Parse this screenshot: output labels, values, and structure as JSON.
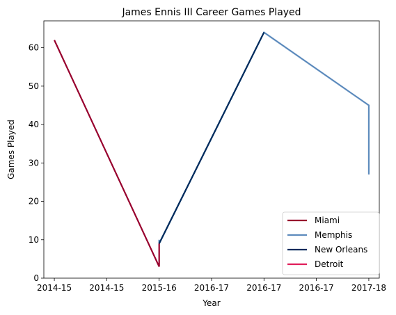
{
  "chart_data": {
    "type": "line",
    "title": "James Ennis III Career Games Played",
    "xlabel": "Year",
    "ylabel": "Games Played",
    "x_tick_labels": [
      "2014-15",
      "2014-15",
      "2015-16",
      "2016-17",
      "2016-17",
      "2016-17",
      "2017-18"
    ],
    "y_ticks": [
      0,
      10,
      20,
      30,
      40,
      50,
      60
    ],
    "xlim": [
      -0.1,
      3.1
    ],
    "ylim": [
      0,
      67
    ],
    "grid": false,
    "legend_position": "lower-right",
    "series": [
      {
        "name": "Miami",
        "color": "#98002E",
        "points": [
          [
            0,
            62
          ],
          [
            1,
            3
          ],
          [
            1,
            9
          ]
        ]
      },
      {
        "name": "Memphis",
        "color": "#5D8BBD",
        "points": [
          [
            1,
            10
          ],
          [
            1,
            9
          ],
          [
            2,
            64
          ],
          [
            3,
            45
          ],
          [
            3,
            27
          ]
        ]
      },
      {
        "name": "New Orleans",
        "color": "#002B5C",
        "points": [
          [
            1,
            9
          ],
          [
            2,
            64
          ]
        ]
      },
      {
        "name": "Detroit",
        "color": "#E01E5A",
        "points": []
      }
    ]
  }
}
